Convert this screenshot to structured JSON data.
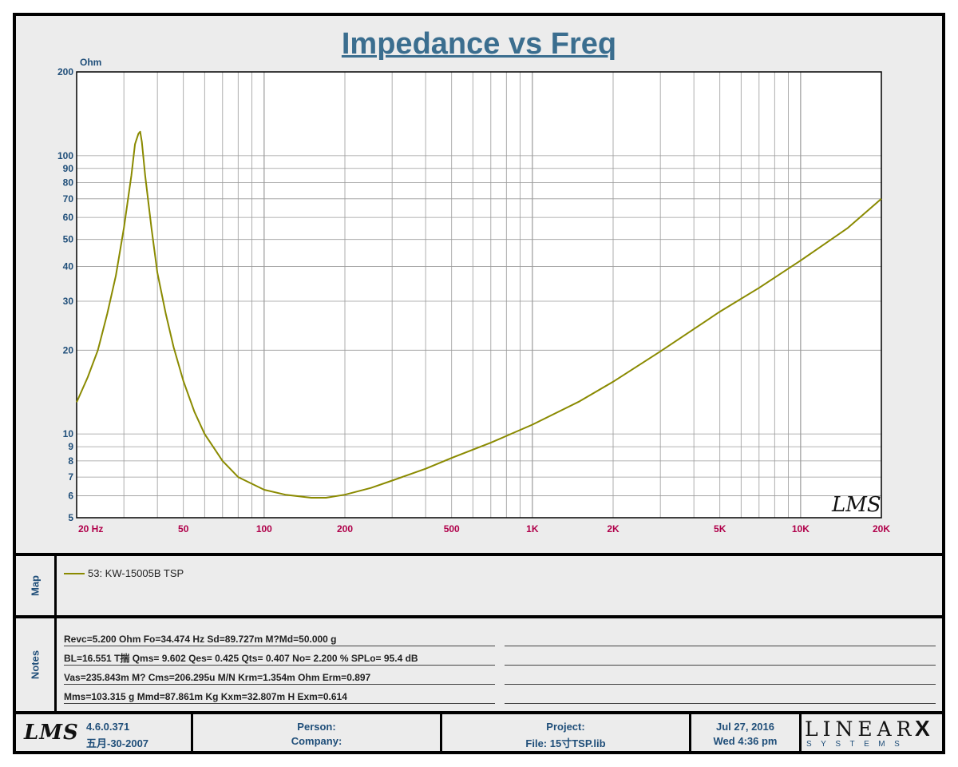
{
  "chart_data": {
    "type": "line",
    "title": "Impedance vs Freq",
    "ylabel": "Ohm",
    "x_scale": "log",
    "y_scale": "log",
    "xlim": [
      20,
      20000
    ],
    "ylim": [
      5,
      200
    ],
    "grid": true,
    "x_tick_labels": [
      {
        "value": 20,
        "label": "20  Hz"
      },
      {
        "value": 50,
        "label": "50"
      },
      {
        "value": 100,
        "label": "100"
      },
      {
        "value": 200,
        "label": "200"
      },
      {
        "value": 500,
        "label": "500"
      },
      {
        "value": 1000,
        "label": "1K"
      },
      {
        "value": 2000,
        "label": "2K"
      },
      {
        "value": 5000,
        "label": "5K"
      },
      {
        "value": 10000,
        "label": "10K"
      },
      {
        "value": 20000,
        "label": "20K"
      }
    ],
    "y_tick_labels": [
      {
        "value": 5,
        "label": "5"
      },
      {
        "value": 6,
        "label": "6"
      },
      {
        "value": 7,
        "label": "7"
      },
      {
        "value": 8,
        "label": "8"
      },
      {
        "value": 9,
        "label": "9"
      },
      {
        "value": 10,
        "label": "10"
      },
      {
        "value": 20,
        "label": "20"
      },
      {
        "value": 30,
        "label": "30"
      },
      {
        "value": 40,
        "label": "40"
      },
      {
        "value": 50,
        "label": "50"
      },
      {
        "value": 60,
        "label": "60"
      },
      {
        "value": 70,
        "label": "70"
      },
      {
        "value": 80,
        "label": "80"
      },
      {
        "value": 90,
        "label": "90"
      },
      {
        "value": 100,
        "label": "100"
      },
      {
        "value": 200,
        "label": "200"
      }
    ],
    "series": [
      {
        "name": "53: KW-15005B  TSP",
        "color": "#8a8a00",
        "x": [
          20,
          22,
          24,
          26,
          28,
          30,
          32,
          33,
          34,
          34.5,
          35,
          36,
          38,
          40,
          43,
          46,
          50,
          55,
          60,
          70,
          80,
          100,
          120,
          150,
          170,
          200,
          250,
          300,
          400,
          500,
          700,
          1000,
          1500,
          2000,
          3000,
          5000,
          7000,
          10000,
          15000,
          20000
        ],
        "y": [
          13,
          16,
          20,
          27,
          37,
          55,
          85,
          110,
          120,
          122,
          112,
          85,
          55,
          38,
          27,
          20.5,
          15.5,
          12,
          10,
          8,
          7,
          6.3,
          6.05,
          5.9,
          5.9,
          6.05,
          6.4,
          6.8,
          7.5,
          8.2,
          9.3,
          10.8,
          13.1,
          15.4,
          19.8,
          27.5,
          33.5,
          42,
          55,
          70
        ]
      }
    ]
  },
  "watermark": "LMS",
  "map": {
    "label": "Map",
    "legend": "53: KW-15005B  TSP"
  },
  "notes": {
    "label": "Notes",
    "lines": [
      "Revc=5.200 Ohm  Fo=34.474 Hz  Sd=89.727m M?Md=50.000 g",
      "BL=16.551 T揣  Qms= 9.602  Qes= 0.425  Qts= 0.407  No= 2.200 %  SPLo= 95.4 dB",
      "Vas=235.843m M? Cms=206.295u M/N  Krm=1.354m Ohm  Erm=0.897",
      "Mms=103.315 g  Mmd=87.861m Kg  Kxm=32.807m H  Exm=0.614"
    ]
  },
  "footer": {
    "logo": "LMS",
    "version": "4.6.0.371",
    "build_date": "五月-30-2007",
    "person_label": "Person:",
    "company_label": "Company:",
    "project_label": "Project:",
    "file_label": "File: 15寸TSP.lib",
    "date": "Jul 27, 2016",
    "day_time": "Wed  4:36 pm",
    "brand_main": "LINEAR",
    "brand_x": "X",
    "brand_sub": "SYSTEMS"
  }
}
